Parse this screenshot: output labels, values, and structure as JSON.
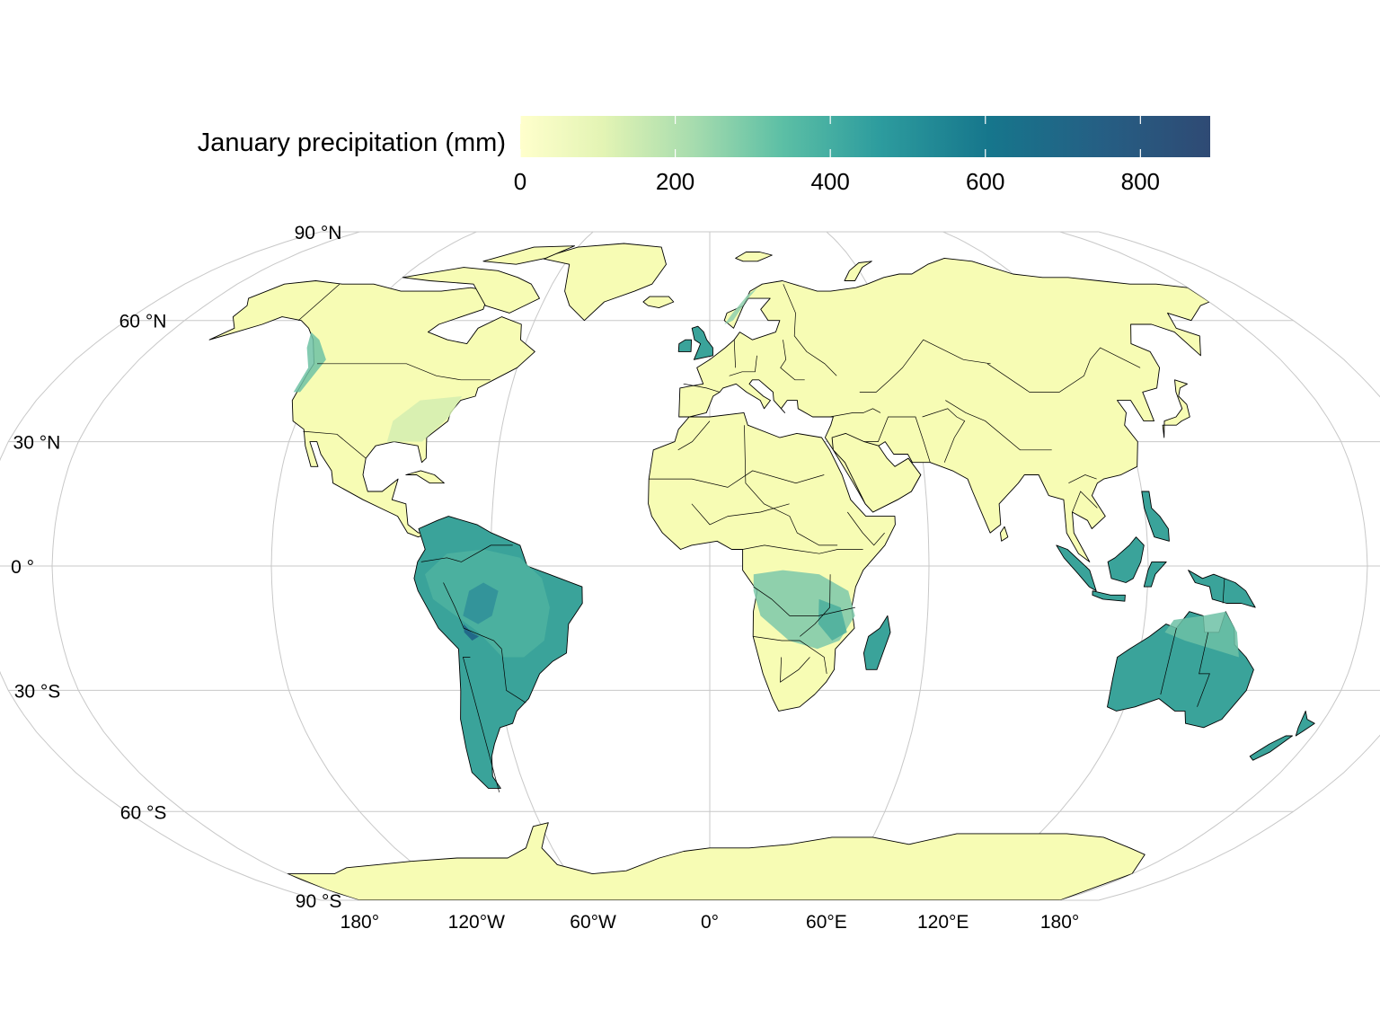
{
  "legend": {
    "title": "January precipitation (mm)",
    "ticks": [
      "0",
      "200",
      "400",
      "600",
      "800"
    ],
    "tick_values": [
      0,
      200,
      400,
      600,
      800
    ],
    "range": [
      0,
      890
    ],
    "colors": [
      "#ffffcc",
      "#c7e9b4",
      "#7fcdbb",
      "#41b6c4",
      "#1d91c0",
      "#16728a",
      "#253494",
      "#2f4a74"
    ]
  },
  "axes": {
    "lat_labels": [
      "90 °N",
      "60 °N",
      "30 °N",
      "0 °",
      "30 °S",
      "60 °S",
      "90 °S"
    ],
    "lat_values": [
      90,
      60,
      30,
      0,
      -30,
      -60,
      -90
    ],
    "lon_labels": [
      "180°",
      "120°W",
      "60°W",
      "0°",
      "60°E",
      "120°E",
      "180°"
    ],
    "lon_values": [
      -180,
      -120,
      -60,
      0,
      60,
      120,
      180
    ]
  },
  "map": {
    "projection": "Robinson",
    "land_color_dry": "#f7fcb4",
    "land_color_wet": "#3aa39a",
    "land_color_verywet": "#1f6f8b",
    "graticule_color": "#c8c8c8"
  }
}
